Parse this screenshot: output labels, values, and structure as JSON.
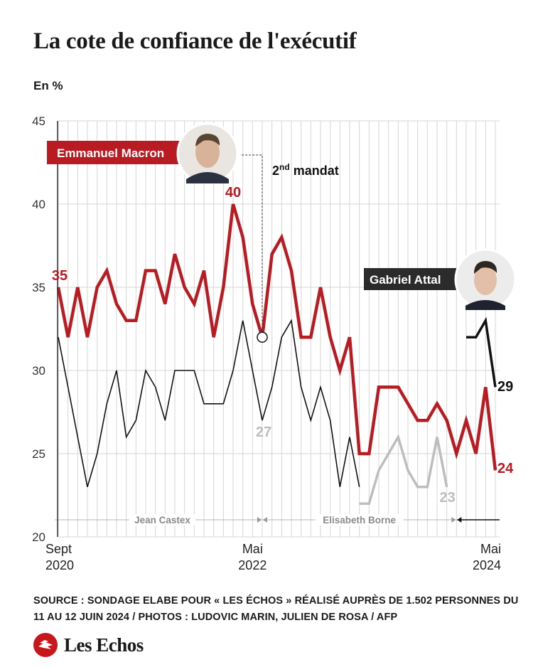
{
  "title": "La cote de confiance de l'exécutif",
  "unit_label": "En %",
  "source_text": "SOURCE : SONDAGE ELABE POUR « LES ÉCHOS » RÉALISÉ AUPRÈS DE 1.502 PERSONNES DU 11 AU 12 JUIN 2024 / PHOTOS : LUDOVIC MARIN, JULIEN DE ROSA / AFP",
  "logo_text": "Les Echos",
  "colors": {
    "macron": "#b81c22",
    "pm": "#111111",
    "borne": "#bdbdbd",
    "grid": "#d6d6d6",
    "label_bg": "#2b2b2b"
  },
  "chart_data": {
    "type": "line",
    "title": "La cote de confiance de l'exécutif",
    "ylabel": "En %",
    "ylim": [
      20,
      45
    ],
    "yticks": [
      20,
      25,
      30,
      35,
      40,
      45
    ],
    "x_start": "Sept 2020",
    "x_end": "Mai 2024",
    "x_count": 46,
    "x_tick_labels": [
      {
        "index": 0,
        "month": "Sept",
        "year": "2020"
      },
      {
        "index": 20,
        "month": "Mai",
        "year": "2022"
      },
      {
        "index": 45,
        "month": "Mai",
        "year": "2024"
      }
    ],
    "series": [
      {
        "name": "Emmanuel Macron",
        "label": "Emmanuel Macron",
        "color": "#b81c22",
        "values": [
          35,
          32,
          35,
          32,
          35,
          36,
          34,
          33,
          33,
          36,
          36,
          34,
          37,
          35,
          34,
          36,
          32,
          35,
          40,
          38,
          34,
          32,
          37,
          38,
          36,
          32,
          32,
          35,
          32,
          30,
          32,
          25,
          25,
          29,
          29,
          29,
          28,
          27,
          27,
          28,
          27,
          25,
          27,
          25,
          29,
          24
        ]
      },
      {
        "name": "Jean Castex",
        "color": "#111111",
        "start": 0,
        "values": [
          32,
          29,
          26,
          23,
          25,
          28,
          30,
          26,
          27,
          30,
          29,
          27,
          30,
          30,
          30,
          28,
          28,
          28,
          30,
          33,
          30,
          27
        ]
      },
      {
        "name": "Elisabeth Borne",
        "color": "#111111",
        "start": 21,
        "values": [
          27,
          29,
          32,
          33,
          29,
          27,
          29,
          27,
          23,
          26,
          23
        ]
      },
      {
        "name": "Elisabeth Borne (suite)",
        "color": "#bdbdbd",
        "start": 31,
        "values": [
          22,
          22,
          24,
          25,
          26,
          24,
          23,
          23,
          26,
          23
        ]
      },
      {
        "name": "Gabriel Attal",
        "label": "Gabriel Attal",
        "color": "#111111",
        "start": 42,
        "values": [
          32,
          32,
          33,
          29
        ]
      }
    ],
    "value_labels": [
      {
        "text": "35",
        "series": "macron",
        "index": 0
      },
      {
        "text": "40",
        "series": "macron",
        "index": 18
      },
      {
        "text": "24",
        "series": "macron",
        "index": 45
      },
      {
        "text": "27",
        "series": "borne",
        "index": 21
      },
      {
        "text": "23",
        "series": "borne_grey",
        "index": 40
      },
      {
        "text": "29",
        "series": "attal",
        "index": 45
      }
    ],
    "annotation": {
      "base": "2",
      "superscript": "nd",
      "text": "mandat",
      "index": 21
    },
    "periods": [
      {
        "label": "Jean Castex",
        "from": 0,
        "to": 21
      },
      {
        "label": "Elisabeth Borne",
        "from": 21,
        "to": 41
      },
      {
        "label": "Gabriel Attal",
        "from": 41,
        "to": 46
      }
    ]
  }
}
